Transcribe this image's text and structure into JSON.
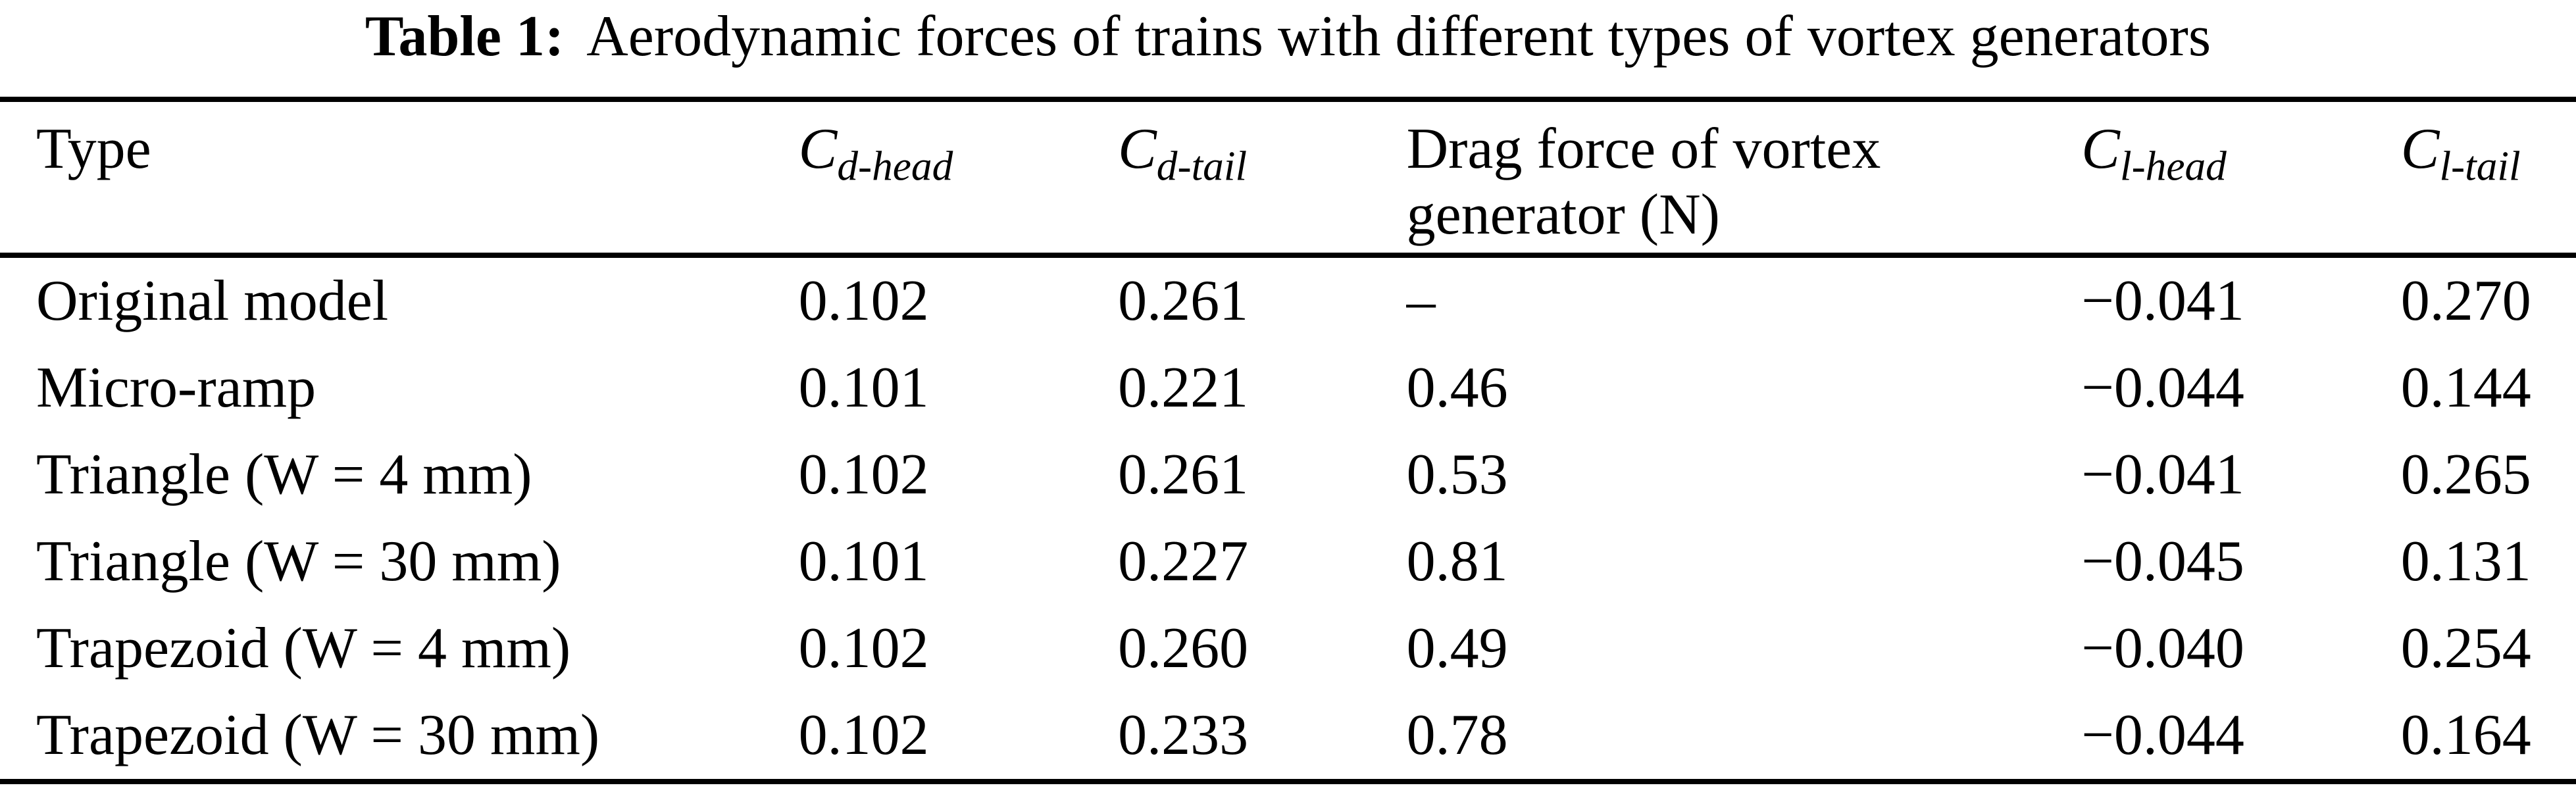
{
  "title": {
    "prefix": "Table 1:",
    "text": "Aerodynamic forces of trains with different types of vortex generators"
  },
  "table": {
    "columns": [
      {
        "kind": "text",
        "label": "Type"
      },
      {
        "kind": "math",
        "base": "C",
        "sub": "d-head"
      },
      {
        "kind": "math",
        "base": "C",
        "sub": "d-tail"
      },
      {
        "kind": "text",
        "label": "Drag force of vortex generator (N)"
      },
      {
        "kind": "math",
        "base": "C",
        "sub": "l-head"
      },
      {
        "kind": "math",
        "base": "C",
        "sub": "l-tail"
      }
    ],
    "rows": [
      [
        "Original model",
        "0.102",
        "0.261",
        "–",
        "−0.041",
        "0.270"
      ],
      [
        "Micro-ramp",
        "0.101",
        "0.221",
        "0.46",
        "−0.044",
        "0.144"
      ],
      [
        "Triangle (W = 4 mm)",
        "0.102",
        "0.261",
        "0.53",
        "−0.041",
        "0.265"
      ],
      [
        "Triangle (W = 30 mm)",
        "0.101",
        "0.227",
        "0.81",
        "−0.045",
        "0.131"
      ],
      [
        "Trapezoid (W = 4 mm)",
        "0.102",
        "0.260",
        "0.49",
        "−0.040",
        "0.254"
      ],
      [
        "Trapezoid (W = 30 mm)",
        "0.102",
        "0.233",
        "0.78",
        "−0.044",
        "0.164"
      ]
    ]
  },
  "colors": {
    "text": "#000000",
    "background": "#ffffff",
    "rule": "#000000"
  }
}
